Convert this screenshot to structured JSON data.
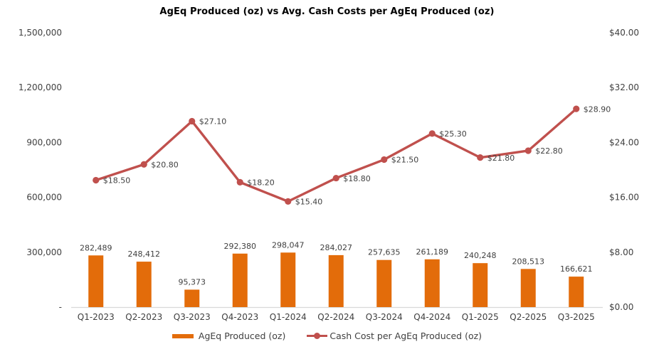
{
  "chart_data": {
    "type": "combo-bar-line",
    "title": "AgEq Produced (oz) vs Avg. Cash Costs per AgEq Produced (oz)",
    "categories": [
      "Q1-2023",
      "Q2-2023",
      "Q3-2023",
      "Q4-2023",
      "Q1-2024",
      "Q2-2024",
      "Q3-2024",
      "Q4-2024",
      "Q1-2025",
      "Q2-2025",
      "Q3-2025"
    ],
    "series": [
      {
        "name": "AgEq Produced (oz)",
        "type": "bar",
        "axis": "left",
        "color": "#E36C0A",
        "values": [
          282489,
          248412,
          95373,
          292380,
          298047,
          284027,
          257635,
          261189,
          240248,
          208513,
          166621
        ],
        "labels": [
          "282,489",
          "248,412",
          "95,373",
          "292,380",
          "298,047",
          "284,027",
          "257,635",
          "261,189",
          "240,248",
          "208,513",
          "166,621"
        ]
      },
      {
        "name": "Cash Cost per AgEq Produced (oz)",
        "type": "line",
        "axis": "right",
        "color": "#C0504D",
        "values": [
          18.5,
          20.8,
          27.1,
          18.2,
          15.4,
          18.8,
          21.5,
          25.3,
          21.8,
          22.8,
          28.9
        ],
        "labels": [
          "$18.50",
          "$20.80",
          "$27.10",
          "$18.20",
          "$15.40",
          "$18.80",
          "$21.50",
          "$25.30",
          "$21.80",
          "$22.80",
          "$28.90"
        ]
      }
    ],
    "left_axis": {
      "min": 0,
      "max": 1500000,
      "step": 300000,
      "tick_labels": [
        "-",
        "300,000",
        "600,000",
        "900,000",
        "1,200,000",
        "1,500,000"
      ]
    },
    "right_axis": {
      "min": 0,
      "max": 40,
      "step": 8,
      "tick_labels": [
        "$0.00",
        "$8.00",
        "$16.00",
        "$24.00",
        "$32.00",
        "$40.00"
      ]
    },
    "grid": false,
    "legend_position": "bottom"
  },
  "colors": {
    "bar": "#E36C0A",
    "line": "#C0504D",
    "axis_text": "#404040",
    "data_label": "#404040",
    "axis_line": "#D9D9D9",
    "title_text": "#000000",
    "background": "#FFFFFF"
  }
}
